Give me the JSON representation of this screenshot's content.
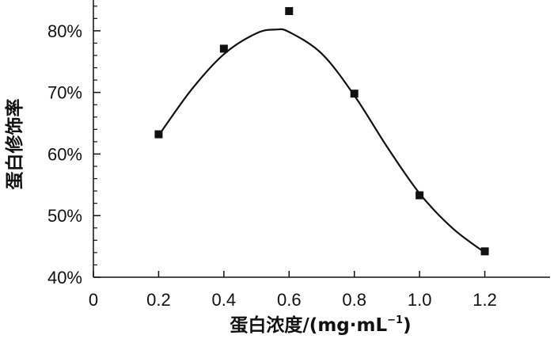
{
  "chart_data": {
    "type": "scatter",
    "xlabel_main": "蛋白浓度/(mg·mL",
    "xlabel_sup": "−1",
    "xlabel_close": ")",
    "ylabel": "蛋白修饰率",
    "xlim": [
      0,
      1.4
    ],
    "ylim": [
      40,
      85
    ],
    "x_ticks": [
      "0",
      "0.2",
      "0.4",
      "0.6",
      "0.8",
      "1.0",
      "1.2"
    ],
    "y_ticks": [
      "40%",
      "50%",
      "60%",
      "70%",
      "80%"
    ],
    "x_tick_values": [
      0,
      0.2,
      0.4,
      0.6,
      0.8,
      1.0,
      1.2
    ],
    "y_tick_values": [
      40,
      50,
      60,
      70,
      80
    ],
    "series": [
      {
        "x": [
          0.2,
          0.4,
          0.6,
          0.8,
          1.0,
          1.2
        ],
        "y": [
          63.2,
          77.1,
          83.2,
          69.8,
          53.3,
          44.2
        ],
        "marker": "square",
        "color": "#111111"
      }
    ],
    "fit_curve": {
      "x": [
        0.2,
        0.3,
        0.4,
        0.5,
        0.56,
        0.6,
        0.7,
        0.8,
        0.9,
        1.0,
        1.1,
        1.2
      ],
      "y": [
        63.0,
        70.4,
        76.2,
        79.6,
        80.2,
        79.8,
        76.3,
        69.5,
        61.2,
        53.6,
        48.0,
        44.0
      ],
      "color": "#111111"
    },
    "grid": false
  }
}
